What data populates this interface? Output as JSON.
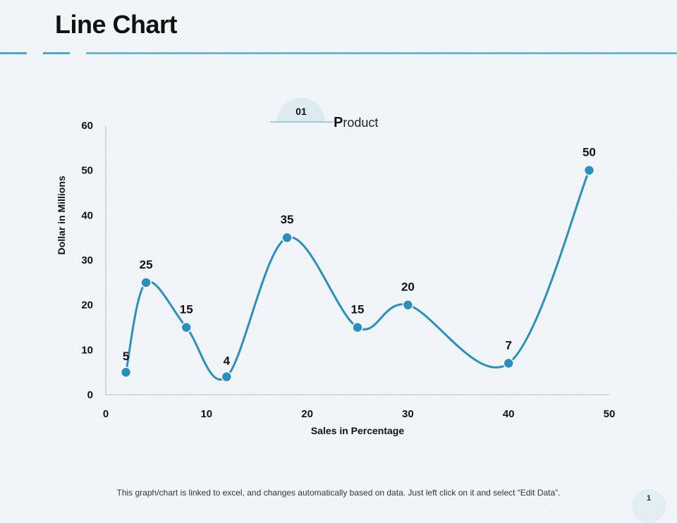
{
  "slide": {
    "title": "Line Chart",
    "footer_note": "This graph/chart is linked to excel, and changes automatically based on data. Just left click on it and select “Edit Data”.",
    "page_number": "1"
  },
  "colors": {
    "accent": "#4aa8c9",
    "series": "#2a8fbd",
    "axis": "#bcbcbc",
    "badge": "#dcebf2"
  },
  "chart_data": {
    "type": "scatter",
    "title": "",
    "series": [
      {
        "name": "Product",
        "badge": "01",
        "smooth": true,
        "x": [
          2,
          4,
          8,
          12,
          18,
          25,
          30,
          40,
          48
        ],
        "y": [
          5,
          25,
          15,
          4,
          35,
          15,
          20,
          7,
          50
        ],
        "labels": [
          "5",
          "25",
          "15",
          "4",
          "35",
          "15",
          "20",
          "7",
          "50"
        ]
      }
    ],
    "xlabel": "Sales in Percentage",
    "ylabel": "Dollar in Millions",
    "xlim": [
      0,
      50
    ],
    "ylim": [
      0,
      60
    ],
    "xticks": [
      0,
      10,
      20,
      30,
      40,
      50
    ],
    "yticks": [
      0,
      10,
      20,
      30,
      40,
      50,
      60
    ],
    "grid": false,
    "legend": "top-center"
  }
}
